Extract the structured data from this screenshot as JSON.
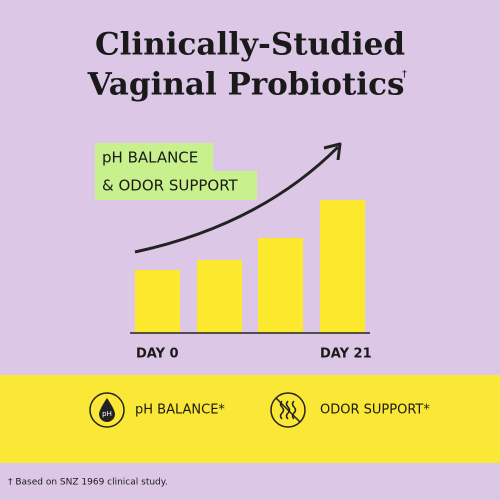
{
  "header": {
    "title_lines": [
      "Clinically-Studied",
      "Vaginal Probiotics"
    ],
    "dagger": "†"
  },
  "badges": [
    "pH BALANCE",
    "& ODOR SUPPORT"
  ],
  "axis_labels": {
    "start": "DAY 0",
    "end": "DAY 21"
  },
  "features": [
    {
      "label": "pH BALANCE*",
      "icon_text": "pH"
    },
    {
      "label": "ODOR SUPPORT*"
    }
  ],
  "footnote": "† Based on SNZ 1969 clinical study."
}
